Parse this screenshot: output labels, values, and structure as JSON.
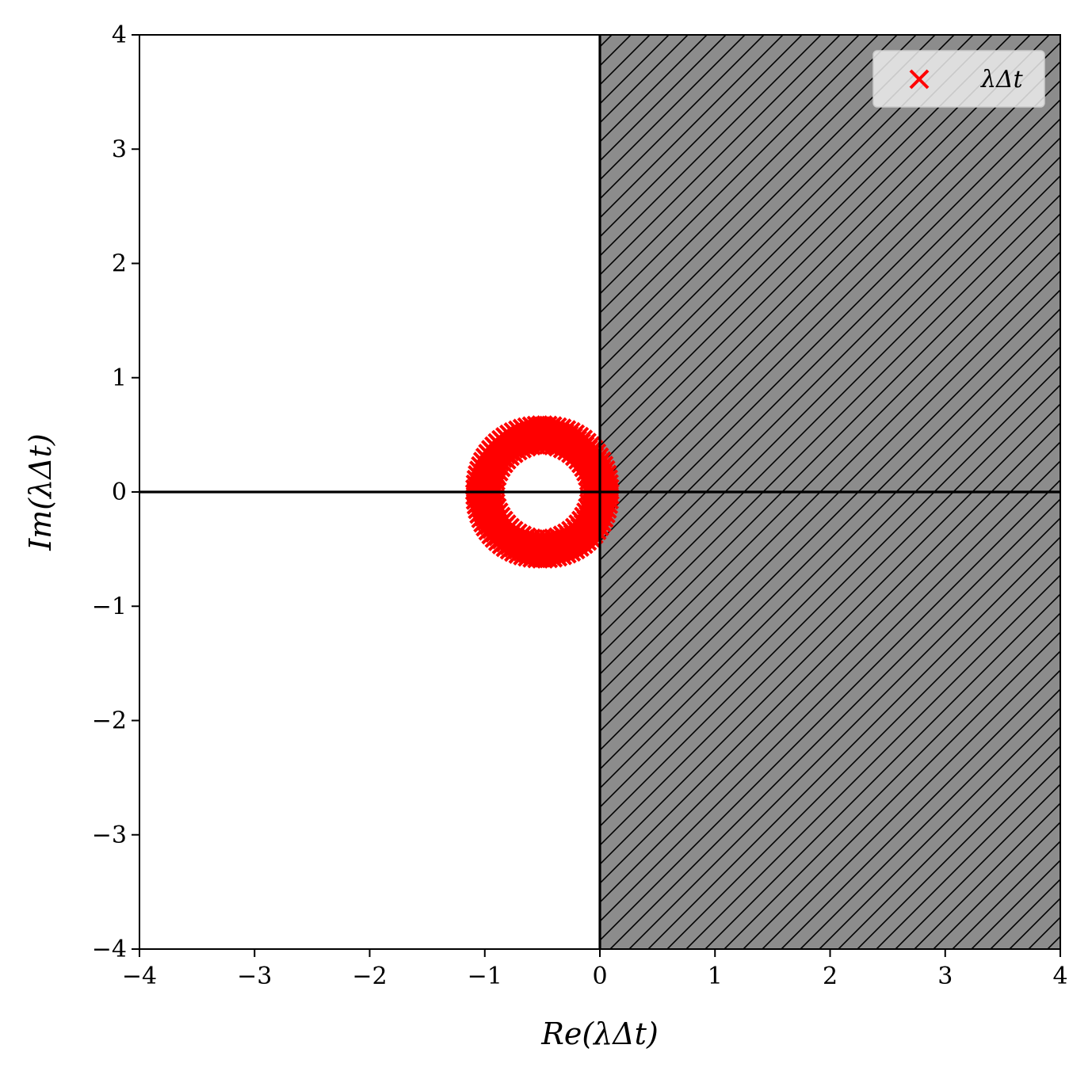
{
  "chart_data": {
    "type": "scatter",
    "title": "",
    "xlabel": "Re(λΔt)",
    "ylabel": "Im(λΔt)",
    "xlim": [
      -4,
      4
    ],
    "ylim": [
      -4,
      4
    ],
    "x_ticks": [
      -4,
      -3,
      -2,
      -1,
      0,
      1,
      2,
      3,
      4
    ],
    "y_ticks": [
      -4,
      -3,
      -2,
      -1,
      0,
      1,
      2,
      3,
      4
    ],
    "x_tick_labels": [
      "−4",
      "−3",
      "−2",
      "−1",
      "0",
      "1",
      "2",
      "3",
      "4"
    ],
    "y_tick_labels": [
      "−4",
      "−3",
      "−2",
      "−1",
      "0",
      "1",
      "2",
      "3",
      "4"
    ],
    "grid": false,
    "legend": {
      "position": "top-right",
      "entries": [
        {
          "label": "λΔt",
          "marker": "x",
          "color": "#ff0000"
        }
      ]
    },
    "series": [
      {
        "name": "λΔt",
        "marker": "x",
        "color": "#ff0000",
        "points_description_center": [
          -0.5,
          0.0
        ],
        "points_inner_radius": 0.4,
        "points_outer_radius": 0.6
      }
    ],
    "shaded_region": {
      "x_range": [
        0,
        4
      ],
      "y_range": [
        -4,
        4
      ],
      "fill": "#8c8c8c",
      "hatch": "diagonal"
    },
    "reference_lines": {
      "horizontal_y": 0,
      "vertical_x": 0
    }
  }
}
